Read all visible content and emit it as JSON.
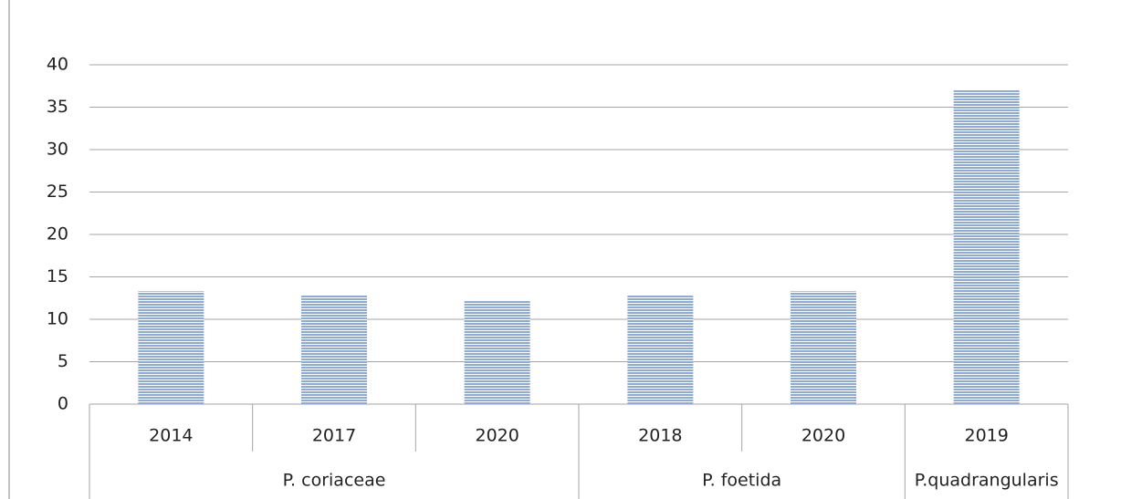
{
  "chart_data": {
    "type": "bar",
    "color": "#8eaadb",
    "groups": [
      {
        "name": "P. coriaceae",
        "categories": [
          "2014",
          "2017",
          "2020"
        ],
        "values": [
          13.3,
          12.9,
          12.2
        ]
      },
      {
        "name": "P. foetida",
        "categories": [
          "2018",
          "2020"
        ],
        "values": [
          12.9,
          13.3
        ]
      },
      {
        "name": "P.quadrangularis",
        "categories": [
          "2019"
        ],
        "values": [
          37
        ]
      }
    ],
    "ylim": [
      0,
      40
    ],
    "yticks": [
      0,
      5,
      10,
      15,
      20,
      25,
      30,
      35,
      40
    ],
    "grid": true
  }
}
